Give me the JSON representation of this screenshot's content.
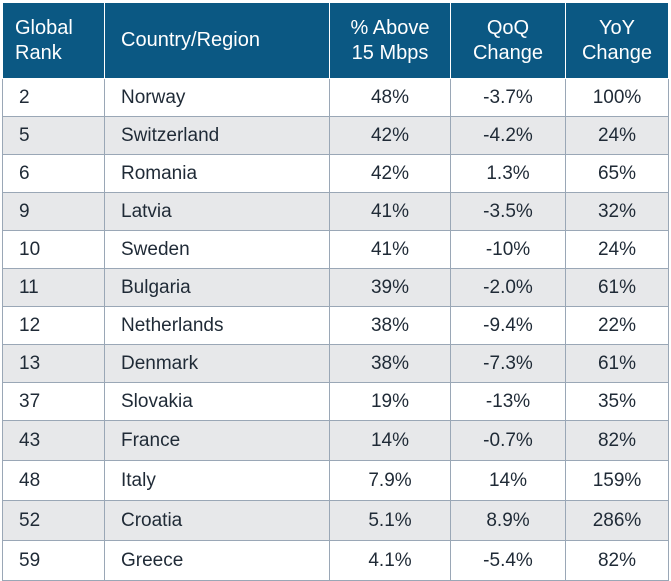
{
  "chart_data": {
    "type": "table",
    "columns": [
      {
        "lines": [
          "Global",
          "Rank"
        ]
      },
      {
        "lines": [
          "Country/Region"
        ]
      },
      {
        "lines": [
          "% Above",
          "15 Mbps"
        ]
      },
      {
        "lines": [
          "QoQ",
          "Change"
        ]
      },
      {
        "lines": [
          "YoY",
          "Change"
        ]
      }
    ],
    "rows": [
      {
        "rank": "2",
        "country": "Norway",
        "above_15": "48%",
        "qoq": "-3.7%",
        "yoy": "100%"
      },
      {
        "rank": "5",
        "country": "Switzerland",
        "above_15": "42%",
        "qoq": "-4.2%",
        "yoy": "24%"
      },
      {
        "rank": "6",
        "country": "Romania",
        "above_15": "42%",
        "qoq": "1.3%",
        "yoy": "65%"
      },
      {
        "rank": "9",
        "country": "Latvia",
        "above_15": "41%",
        "qoq": "-3.5%",
        "yoy": "32%"
      },
      {
        "rank": "10",
        "country": "Sweden",
        "above_15": "41%",
        "qoq": "-10%",
        "yoy": "24%"
      },
      {
        "rank": "11",
        "country": "Bulgaria",
        "above_15": "39%",
        "qoq": "-2.0%",
        "yoy": "61%"
      },
      {
        "rank": "12",
        "country": "Netherlands",
        "above_15": "38%",
        "qoq": "-9.4%",
        "yoy": "22%"
      },
      {
        "rank": "13",
        "country": "Denmark",
        "above_15": "38%",
        "qoq": "-7.3%",
        "yoy": "61%"
      },
      {
        "rank": "37",
        "country": "Slovakia",
        "above_15": "19%",
        "qoq": "-13%",
        "yoy": "35%"
      },
      {
        "rank": "43",
        "country": "France",
        "above_15": "14%",
        "qoq": "-0.7%",
        "yoy": "82%"
      },
      {
        "rank": "48",
        "country": "Italy",
        "above_15": "7.9%",
        "qoq": "14%",
        "yoy": "159%"
      },
      {
        "rank": "52",
        "country": "Croatia",
        "above_15": "5.1%",
        "qoq": "8.9%",
        "yoy": "286%"
      },
      {
        "rank": "59",
        "country": "Greece",
        "above_15": "4.1%",
        "qoq": "-5.4%",
        "yoy": "82%"
      }
    ]
  },
  "colors": {
    "header_bg": "#0b5883",
    "header_text": "#ffffff",
    "row_alt_bg": "#e7e8ea",
    "row_bg": "#ffffff",
    "grid_line": "#9aa7b6",
    "text": "#1f2a36"
  }
}
